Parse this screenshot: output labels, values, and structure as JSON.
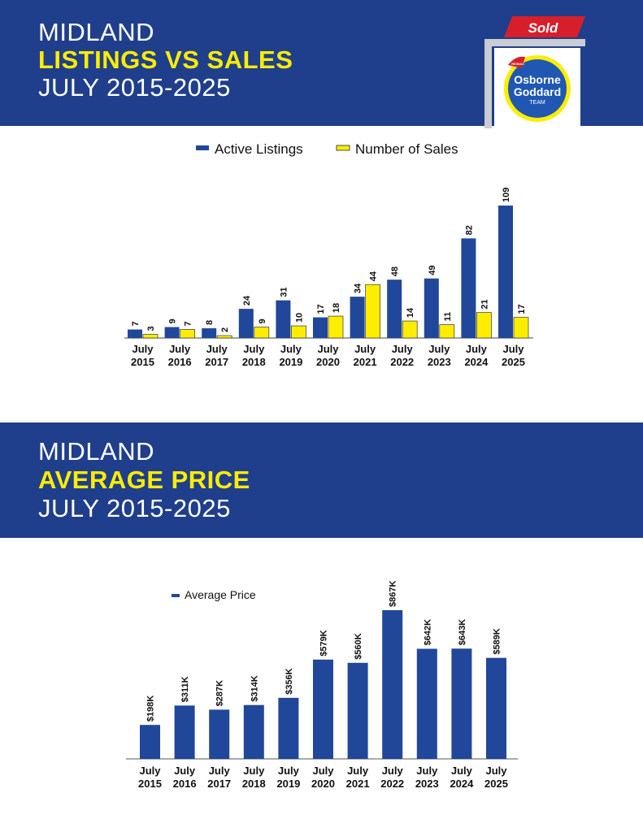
{
  "section1": {
    "title_line1": "MIDLAND",
    "title_line2": "LISTINGS VS SALES",
    "title_line3": "JULY 2015-2025"
  },
  "section2": {
    "title_line1": "MIDLAND",
    "title_line2": "AVERAGE PRICE",
    "title_line3": "JULY 2015-2025"
  },
  "logo": {
    "sign_text": "Sold",
    "brand_small": "RE/MAX",
    "line1": "Osborne",
    "line2": "Goddard",
    "line3": "TEAM"
  },
  "colors": {
    "banner": "#1f3e8c",
    "highlight": "#ffed00",
    "bar_blue": "#21479a",
    "bar_yellow": "#ffed00",
    "sign_red": "#d71f2b"
  },
  "chart_data": [
    {
      "type": "bar",
      "categories": [
        [
          "July",
          "2015"
        ],
        [
          "July",
          "2016"
        ],
        [
          "July",
          "2017"
        ],
        [
          "July",
          "2018"
        ],
        [
          "July",
          "2019"
        ],
        [
          "July",
          "2020"
        ],
        [
          "July",
          "2021"
        ],
        [
          "July",
          "2022"
        ],
        [
          "July",
          "2023"
        ],
        [
          "July",
          "2024"
        ],
        [
          "July",
          "2025"
        ]
      ],
      "series": [
        {
          "name": "Active Listings",
          "values": [
            7,
            9,
            8,
            24,
            31,
            17,
            34,
            48,
            49,
            82,
            109
          ],
          "labels": [
            "7",
            "9",
            "8",
            "24",
            "31",
            "17",
            "34",
            "48",
            "49",
            "82",
            "109"
          ],
          "color": "#21479a"
        },
        {
          "name": "Number of Sales",
          "values": [
            3,
            7,
            2,
            9,
            10,
            18,
            44,
            14,
            11,
            21,
            17
          ],
          "labels": [
            "3",
            "7",
            "2",
            "9",
            "10",
            "18",
            "44",
            "14",
            "11",
            "21",
            "17"
          ],
          "color": "#ffed00"
        }
      ],
      "legend_position": "top-center",
      "grid": false,
      "title": "",
      "xlabel": "",
      "ylabel": ""
    },
    {
      "type": "bar",
      "categories": [
        [
          "July",
          "2015"
        ],
        [
          "July",
          "2016"
        ],
        [
          "July",
          "2017"
        ],
        [
          "July",
          "2018"
        ],
        [
          "July",
          "2019"
        ],
        [
          "July",
          "2020"
        ],
        [
          "July",
          "2021"
        ],
        [
          "July",
          "2022"
        ],
        [
          "July",
          "2023"
        ],
        [
          "July",
          "2024"
        ],
        [
          "July",
          "2025"
        ]
      ],
      "series": [
        {
          "name": "Average Price",
          "values": [
            198,
            311,
            287,
            314,
            356,
            579,
            560,
            867,
            642,
            643,
            589
          ],
          "labels": [
            "$198K",
            "$311K",
            "$287K",
            "$314K",
            "$356K",
            "$579K",
            "$560K",
            "$867K",
            "$642K",
            "$643K",
            "$589K"
          ],
          "color": "#21479a"
        }
      ],
      "legend_position": "top-left",
      "grid": false,
      "title": "",
      "xlabel": "",
      "ylabel": ""
    }
  ]
}
